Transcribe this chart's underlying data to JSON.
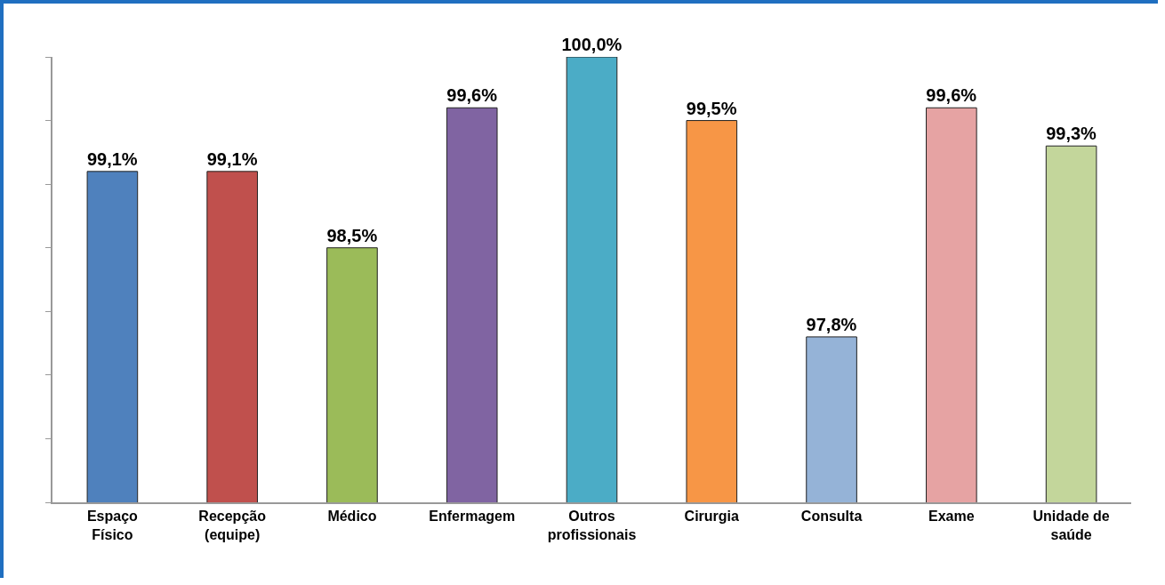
{
  "chart_data": {
    "type": "bar",
    "categories": [
      "Espaço Físico",
      "Recepção (equipe)",
      "Médico",
      "Enfermagem",
      "Outros profissionais",
      "Cirurgia",
      "Consulta",
      "Exame",
      "Unidade de saúde"
    ],
    "values": [
      99.1,
      99.1,
      98.5,
      99.6,
      100.0,
      99.5,
      97.8,
      99.6,
      99.3
    ],
    "colors": [
      "#4f81bd",
      "#c0504d",
      "#9bbb59",
      "#8064a2",
      "#4bacc6",
      "#f79646",
      "#95b3d7",
      "#e6a3a3",
      "#c3d69b"
    ],
    "value_labels": [
      "99,1%",
      "99,1%",
      "98,5%",
      "99,6%",
      "100,0%",
      "99,5%",
      "97,8%",
      "99,6%",
      "99,3%"
    ],
    "ylim": [
      96.5,
      100
    ],
    "yticks": [
      {
        "value": 96.5,
        "label": null
      },
      {
        "value": 97,
        "label": null
      },
      {
        "value": 97.5,
        "label": null
      },
      {
        "value": 98,
        "label": null
      },
      {
        "value": 98.5,
        "label": null
      },
      {
        "value": 99,
        "label": null
      },
      {
        "value": 99.5,
        "label": null
      },
      {
        "value": 100,
        "label": null
      }
    ],
    "tick_labels": "x",
    "grid": false
  }
}
